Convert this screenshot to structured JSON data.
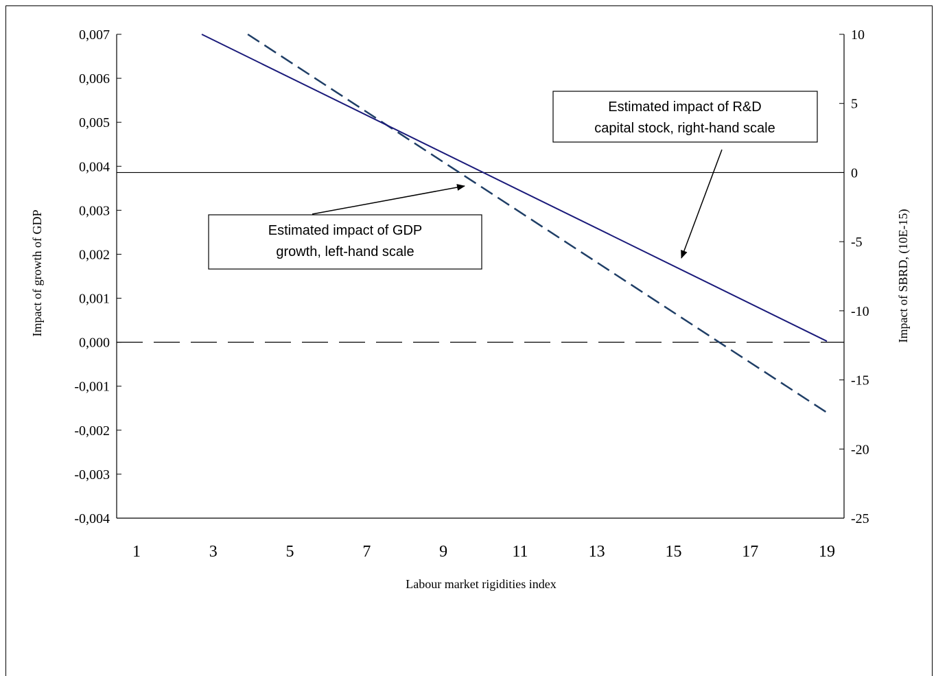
{
  "chart_data": {
    "type": "line",
    "x": [
      1,
      3,
      5,
      7,
      9,
      11,
      13,
      15,
      17,
      19
    ],
    "x_tick_labels": [
      "1",
      "3",
      "5",
      "7",
      "9",
      "11",
      "13",
      "15",
      "17",
      "19"
    ],
    "xlabel": "Labour market rigidities index",
    "ylabel_left": "Impact of growth of GDP",
    "ylabel_right": "Impact of SBRD, (10E-15)",
    "ylim_left": [
      -0.004,
      0.007
    ],
    "ylim_right": [
      -25,
      10
    ],
    "y_ticks_left": [
      "0,007",
      "0,006",
      "0,005",
      "0,004",
      "0,003",
      "0,002",
      "0,001",
      "0,000",
      "-0,001",
      "-0,002",
      "-0,003",
      "-0,004"
    ],
    "y_ticks_right": [
      "10",
      "5",
      "0",
      "-5",
      "-10",
      "-15",
      "-20",
      "-25"
    ],
    "series": [
      {
        "axis": "left",
        "style": "dashed",
        "color": "#1F3E66",
        "x": [
          3.9,
          19
        ],
        "values": [
          0.007,
          -0.0016
        ]
      },
      {
        "axis": "right",
        "style": "solid",
        "color": "#1A1A7A",
        "x": [
          2.7,
          19
        ],
        "values": [
          10,
          -12.2
        ]
      }
    ],
    "reference_lines": [
      {
        "axis": "left",
        "value": 0.0,
        "style": "long-dash",
        "color": "#000000"
      },
      {
        "axis": "right",
        "value": 0,
        "style": "solid",
        "color": "#000000"
      }
    ],
    "annotations": [
      {
        "lines": [
          "Estimated impact of R&D",
          "capital stock, right-hand scale"
        ]
      },
      {
        "lines": [
          "Estimated impact of GDP",
          "growth, left-hand scale"
        ]
      }
    ],
    "grid": false,
    "legend": "none"
  }
}
